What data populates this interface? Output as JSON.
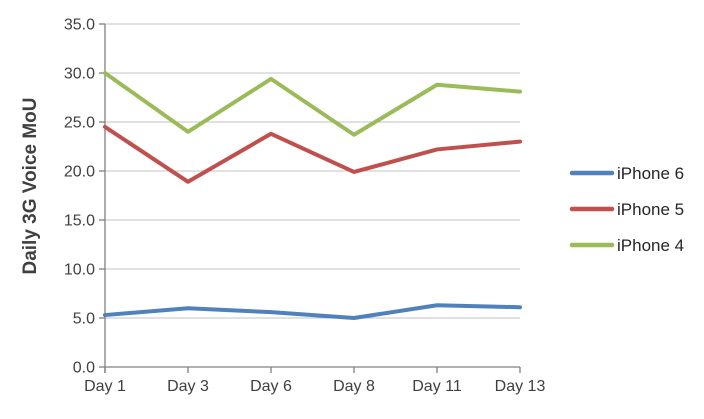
{
  "chart_data": {
    "type": "line",
    "title": "",
    "xlabel": "",
    "ylabel": "Daily 3G Voice MoU",
    "categories": [
      "Day 1",
      "Day 3",
      "Day 6",
      "Day 8",
      "Day 11",
      "Day 13"
    ],
    "series": [
      {
        "name": "iPhone 6",
        "color": "#4F81BD",
        "values": [
          5.3,
          6.0,
          5.6,
          5.0,
          6.3,
          6.1
        ]
      },
      {
        "name": "iPhone 5",
        "color": "#C0504D",
        "values": [
          24.5,
          18.9,
          23.8,
          19.9,
          22.2,
          23.0
        ]
      },
      {
        "name": "iPhone 4",
        "color": "#9BBB59",
        "values": [
          30.0,
          24.0,
          29.4,
          23.7,
          28.8,
          28.1
        ]
      }
    ],
    "ylim": [
      0,
      35
    ],
    "ytick_step": 5,
    "ytick_labels": [
      "0.0",
      "5.0",
      "10.0",
      "15.0",
      "20.0",
      "25.0",
      "30.0",
      "35.0"
    ],
    "grid": "horizontal",
    "legend_position": "right",
    "legend_entries": [
      "iPhone 6",
      "iPhone 5",
      "iPhone 4"
    ]
  },
  "colors": {
    "background": "#FFFFFF",
    "text": "#404040",
    "gridline": "#C3C3C3",
    "axis": "#808080"
  }
}
